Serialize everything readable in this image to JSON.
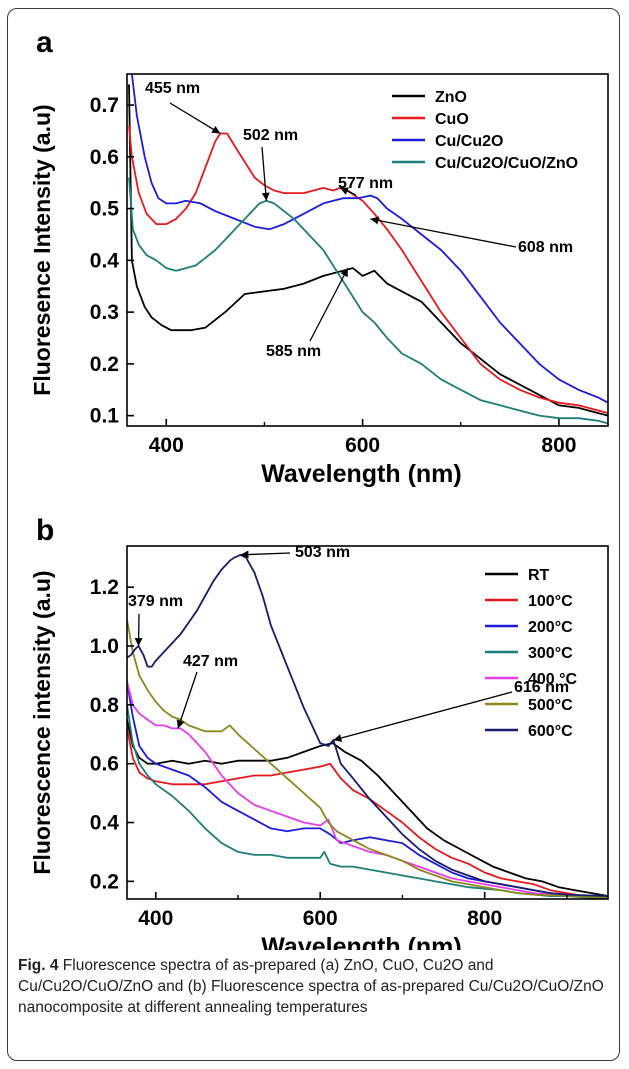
{
  "caption": {
    "label": "Fig. 4",
    "text": "Fluorescence spectra of as-prepared (a) ZnO, CuO, Cu2O and Cu/Cu2O/CuO/ZnO and (b) Fluorescence spectra of as-prepared Cu/Cu2O/CuO/ZnO nanocomposite at different annealing temperatures"
  },
  "chart_data": [
    {
      "panel": "a",
      "type": "line",
      "xlabel": "Wavelength (nm)",
      "ylabel": "Fluoresence Intensity (a.u)",
      "xlim": [
        360,
        850
      ],
      "ylim": [
        0.08,
        0.76
      ],
      "xticks": [
        "400",
        "600",
        "800"
      ],
      "yticks": [
        "0.1",
        "0.2",
        "0.3",
        "0.4",
        "0.5",
        "0.6",
        "0.7"
      ],
      "legend_position": "top-right",
      "series": [
        {
          "name": "ZnO",
          "color": "#000000",
          "x": [
            362,
            365,
            370,
            378,
            385,
            395,
            405,
            415,
            425,
            440,
            460,
            480,
            500,
            520,
            540,
            560,
            580,
            590,
            600,
            612,
            625,
            640,
            660,
            680,
            700,
            720,
            740,
            760,
            780,
            800,
            820,
            840,
            850
          ],
          "y": [
            0.74,
            0.4,
            0.35,
            0.31,
            0.29,
            0.275,
            0.265,
            0.265,
            0.265,
            0.27,
            0.3,
            0.335,
            0.34,
            0.345,
            0.355,
            0.37,
            0.38,
            0.385,
            0.37,
            0.38,
            0.355,
            0.34,
            0.32,
            0.28,
            0.24,
            0.21,
            0.18,
            0.16,
            0.14,
            0.12,
            0.115,
            0.105,
            0.1
          ]
        },
        {
          "name": "CuO",
          "color": "#e8191c",
          "x": [
            362,
            365,
            372,
            380,
            390,
            400,
            410,
            420,
            430,
            440,
            450,
            455,
            462,
            470,
            480,
            490,
            500,
            510,
            520,
            530,
            540,
            550,
            560,
            570,
            577,
            585,
            592,
            600,
            612,
            625,
            640,
            660,
            680,
            700,
            720,
            740,
            760,
            780,
            800,
            820,
            840,
            850
          ],
          "y": [
            0.66,
            0.6,
            0.53,
            0.49,
            0.47,
            0.47,
            0.48,
            0.5,
            0.53,
            0.58,
            0.63,
            0.645,
            0.645,
            0.62,
            0.59,
            0.56,
            0.545,
            0.535,
            0.53,
            0.53,
            0.53,
            0.535,
            0.54,
            0.535,
            0.54,
            0.535,
            0.525,
            0.515,
            0.49,
            0.46,
            0.42,
            0.36,
            0.3,
            0.25,
            0.2,
            0.17,
            0.15,
            0.135,
            0.125,
            0.12,
            0.11,
            0.105
          ]
        },
        {
          "name": "Cu/Cu2O",
          "color": "#1c1cdc",
          "x": [
            365,
            370,
            378,
            385,
            392,
            400,
            410,
            420,
            435,
            450,
            470,
            490,
            505,
            520,
            540,
            560,
            580,
            595,
            608,
            615,
            625,
            640,
            660,
            680,
            700,
            720,
            740,
            760,
            780,
            800,
            820,
            840,
            850
          ],
          "y": [
            0.76,
            0.68,
            0.6,
            0.55,
            0.52,
            0.51,
            0.51,
            0.515,
            0.51,
            0.495,
            0.48,
            0.465,
            0.46,
            0.47,
            0.49,
            0.51,
            0.52,
            0.52,
            0.525,
            0.52,
            0.5,
            0.48,
            0.45,
            0.42,
            0.38,
            0.33,
            0.28,
            0.24,
            0.2,
            0.17,
            0.15,
            0.135,
            0.125
          ]
        },
        {
          "name": "Cu/Cu2O/CuO/ZnO",
          "color": "#1e7f7a",
          "x": [
            362,
            366,
            372,
            380,
            390,
            400,
            410,
            420,
            430,
            440,
            450,
            460,
            470,
            480,
            490,
            495,
            502,
            510,
            520,
            530,
            540,
            550,
            560,
            570,
            580,
            590,
            600,
            612,
            625,
            640,
            660,
            680,
            700,
            720,
            740,
            760,
            780,
            800,
            820,
            840,
            850
          ],
          "y": [
            0.56,
            0.46,
            0.43,
            0.41,
            0.4,
            0.385,
            0.38,
            0.385,
            0.39,
            0.405,
            0.42,
            0.44,
            0.46,
            0.48,
            0.5,
            0.51,
            0.515,
            0.51,
            0.495,
            0.48,
            0.46,
            0.44,
            0.42,
            0.39,
            0.36,
            0.33,
            0.3,
            0.28,
            0.25,
            0.22,
            0.2,
            0.17,
            0.15,
            0.13,
            0.12,
            0.11,
            0.1,
            0.095,
            0.095,
            0.09,
            0.085
          ]
        }
      ],
      "annotations": [
        {
          "text": "455 nm",
          "x": 455,
          "y": 0.645
        },
        {
          "text": "502 nm",
          "x": 502,
          "y": 0.515
        },
        {
          "text": "577 nm",
          "x": 577,
          "y": 0.54
        },
        {
          "text": "608 nm",
          "x": 608,
          "y": 0.48
        },
        {
          "text": "585 nm",
          "x": 585,
          "y": 0.385
        }
      ]
    },
    {
      "panel": "b",
      "type": "line",
      "xlabel": "Wavelength (nm)",
      "ylabel": "Fluorescence intensity (a.u)",
      "xlim": [
        365,
        950
      ],
      "ylim": [
        0.14,
        1.34
      ],
      "xticks": [
        "400",
        "600",
        "800"
      ],
      "yticks": [
        "0.2",
        "0.4",
        "0.6",
        "0.8",
        "1.0",
        "1.2"
      ],
      "legend_position": "top-right",
      "series": [
        {
          "name": "RT",
          "color": "#000000",
          "x": [
            365,
            372,
            380,
            390,
            400,
            420,
            440,
            460,
            480,
            500,
            520,
            540,
            560,
            580,
            600,
            615,
            630,
            650,
            670,
            690,
            710,
            730,
            750,
            770,
            790,
            810,
            830,
            850,
            870,
            890,
            910,
            930,
            950
          ],
          "y": [
            0.75,
            0.66,
            0.62,
            0.6,
            0.6,
            0.61,
            0.6,
            0.61,
            0.6,
            0.61,
            0.61,
            0.61,
            0.62,
            0.64,
            0.66,
            0.67,
            0.64,
            0.61,
            0.56,
            0.5,
            0.44,
            0.38,
            0.34,
            0.31,
            0.28,
            0.25,
            0.23,
            0.21,
            0.2,
            0.18,
            0.17,
            0.16,
            0.15
          ]
        },
        {
          "name": "100°C",
          "color": "#e8191c",
          "x": [
            365,
            372,
            380,
            390,
            400,
            420,
            440,
            460,
            480,
            500,
            520,
            540,
            560,
            580,
            600,
            612,
            625,
            640,
            660,
            680,
            700,
            720,
            740,
            760,
            780,
            800,
            820,
            840,
            860,
            880,
            900,
            920,
            950
          ],
          "y": [
            0.72,
            0.62,
            0.57,
            0.55,
            0.54,
            0.53,
            0.53,
            0.53,
            0.54,
            0.55,
            0.56,
            0.56,
            0.57,
            0.58,
            0.59,
            0.6,
            0.55,
            0.51,
            0.48,
            0.44,
            0.4,
            0.35,
            0.31,
            0.28,
            0.26,
            0.23,
            0.21,
            0.2,
            0.19,
            0.17,
            0.16,
            0.15,
            0.14
          ]
        },
        {
          "name": "200°C",
          "color": "#1c1cdc",
          "x": [
            365,
            372,
            380,
            390,
            400,
            420,
            440,
            460,
            480,
            500,
            520,
            540,
            560,
            580,
            600,
            612,
            625,
            640,
            660,
            680,
            700,
            720,
            740,
            760,
            780,
            800,
            820,
            840,
            860,
            880,
            900,
            920,
            950
          ],
          "y": [
            0.88,
            0.76,
            0.66,
            0.62,
            0.6,
            0.58,
            0.56,
            0.52,
            0.47,
            0.44,
            0.41,
            0.38,
            0.37,
            0.38,
            0.38,
            0.36,
            0.33,
            0.34,
            0.35,
            0.34,
            0.33,
            0.29,
            0.26,
            0.23,
            0.21,
            0.2,
            0.19,
            0.18,
            0.17,
            0.16,
            0.155,
            0.15,
            0.15
          ]
        },
        {
          "name": "300°C",
          "color": "#1e7f7a",
          "x": [
            365,
            372,
            380,
            390,
            400,
            420,
            440,
            460,
            480,
            500,
            520,
            540,
            560,
            580,
            600,
            605,
            612,
            625,
            640,
            660,
            680,
            700,
            720,
            740,
            760,
            780,
            800,
            820,
            840,
            860,
            880,
            900,
            950
          ],
          "y": [
            0.8,
            0.67,
            0.6,
            0.56,
            0.53,
            0.49,
            0.44,
            0.38,
            0.33,
            0.3,
            0.29,
            0.29,
            0.28,
            0.28,
            0.28,
            0.3,
            0.26,
            0.25,
            0.25,
            0.24,
            0.23,
            0.22,
            0.21,
            0.2,
            0.19,
            0.18,
            0.175,
            0.17,
            0.16,
            0.155,
            0.15,
            0.15,
            0.14
          ]
        },
        {
          "name": "400 °C",
          "color": "#e83de8",
          "x": [
            365,
            372,
            380,
            390,
            400,
            410,
            420,
            430,
            440,
            460,
            480,
            500,
            520,
            540,
            560,
            580,
            600,
            610,
            620,
            640,
            660,
            680,
            700,
            720,
            740,
            760,
            780,
            800,
            820,
            840,
            860,
            880,
            950
          ],
          "y": [
            0.88,
            0.8,
            0.77,
            0.75,
            0.73,
            0.73,
            0.72,
            0.72,
            0.7,
            0.64,
            0.56,
            0.5,
            0.46,
            0.44,
            0.42,
            0.4,
            0.39,
            0.41,
            0.34,
            0.32,
            0.3,
            0.29,
            0.27,
            0.25,
            0.23,
            0.21,
            0.2,
            0.19,
            0.18,
            0.17,
            0.16,
            0.155,
            0.145
          ]
        },
        {
          "name": "500°C",
          "color": "#8a8a1c",
          "x": [
            365,
            372,
            380,
            390,
            400,
            410,
            420,
            430,
            440,
            460,
            480,
            490,
            500,
            520,
            540,
            560,
            580,
            600,
            610,
            620,
            640,
            660,
            680,
            700,
            720,
            740,
            760,
            780,
            800,
            820,
            840,
            860,
            950
          ],
          "y": [
            1.09,
            0.98,
            0.9,
            0.85,
            0.81,
            0.78,
            0.76,
            0.75,
            0.73,
            0.71,
            0.71,
            0.73,
            0.7,
            0.65,
            0.6,
            0.55,
            0.5,
            0.45,
            0.4,
            0.37,
            0.34,
            0.31,
            0.29,
            0.27,
            0.24,
            0.22,
            0.2,
            0.19,
            0.18,
            0.17,
            0.16,
            0.155,
            0.145
          ]
        },
        {
          "name": "600°C",
          "color": "#1a1a6e",
          "x": [
            365,
            370,
            375,
            379,
            385,
            390,
            395,
            400,
            410,
            420,
            430,
            440,
            450,
            460,
            470,
            480,
            490,
            495,
            503,
            510,
            520,
            530,
            540,
            550,
            560,
            570,
            580,
            590,
            600,
            610,
            616,
            625,
            640,
            660,
            680,
            700,
            720,
            740,
            760,
            780,
            800,
            820,
            840,
            860,
            880,
            900,
            950
          ],
          "y": [
            0.96,
            0.97,
            0.99,
            1.0,
            0.97,
            0.93,
            0.93,
            0.95,
            0.98,
            1.01,
            1.04,
            1.08,
            1.12,
            1.17,
            1.22,
            1.26,
            1.29,
            1.3,
            1.31,
            1.3,
            1.25,
            1.17,
            1.07,
            1.0,
            0.93,
            0.86,
            0.79,
            0.73,
            0.67,
            0.66,
            0.68,
            0.6,
            0.55,
            0.48,
            0.42,
            0.36,
            0.31,
            0.27,
            0.24,
            0.22,
            0.2,
            0.19,
            0.18,
            0.17,
            0.16,
            0.155,
            0.15
          ]
        }
      ],
      "annotations": [
        {
          "text": "503 nm",
          "x": 503,
          "y": 1.31
        },
        {
          "text": "379 nm",
          "x": 379,
          "y": 1.0
        },
        {
          "text": "427 nm",
          "x": 427,
          "y": 0.72
        },
        {
          "text": "616 nm",
          "x": 616,
          "y": 0.68
        }
      ]
    }
  ]
}
